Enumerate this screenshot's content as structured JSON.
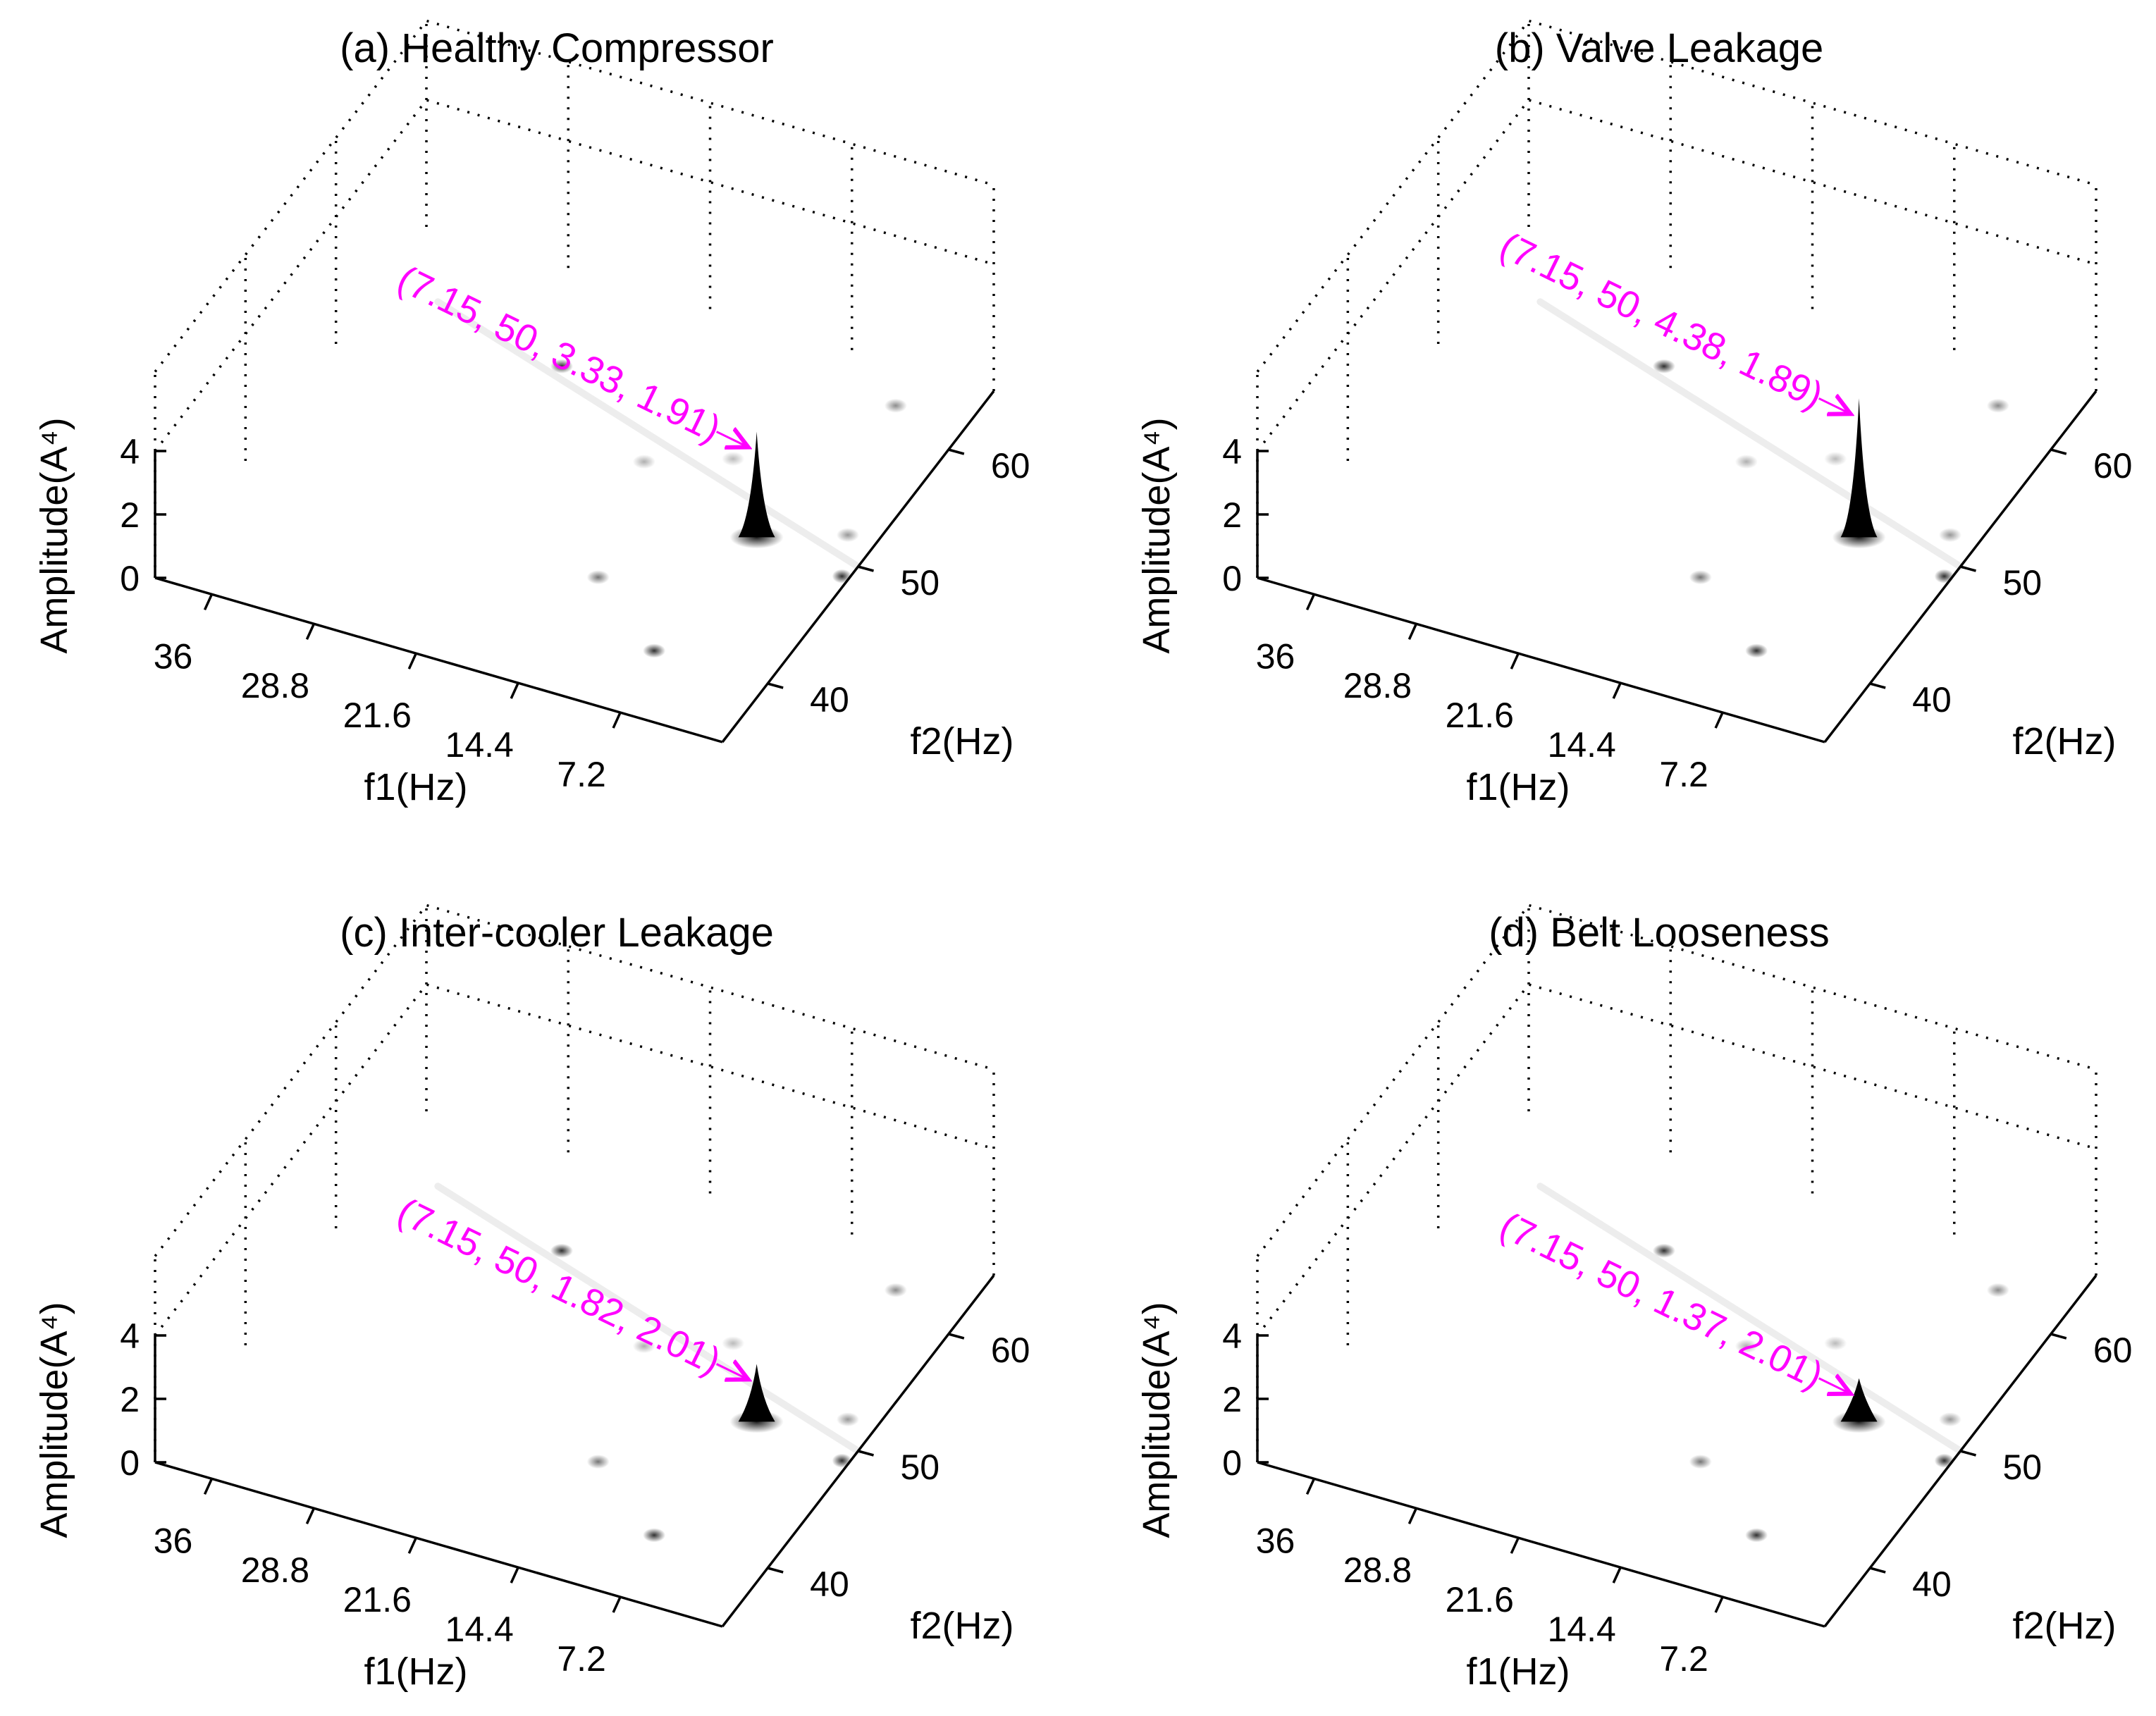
{
  "figure": {
    "annotation_color": "#ff00ff",
    "peak_color": "#000000"
  },
  "chart_data": [
    {
      "type": "surface3d",
      "title": "(a) Healthy Compressor",
      "xlabel": "f1(Hz)",
      "ylabel": "f2(Hz)",
      "zlabel": "Amplitude(A⁴)",
      "x_ticks": [
        "36",
        "28.8",
        "21.6",
        "14.4",
        "7.2"
      ],
      "y_ticks": [
        "40",
        "50",
        "60"
      ],
      "z_ticks": [
        "0",
        "2",
        "4"
      ],
      "zlim": [
        0,
        4
      ],
      "peak": {
        "f1": 7.15,
        "f2": 50,
        "amplitude": 3.33,
        "ratio": 1.91
      },
      "annotation": "(7.15, 50, 3.33, 1.91)"
    },
    {
      "type": "surface3d",
      "title": "(b) Valve Leakage",
      "xlabel": "f1(Hz)",
      "ylabel": "f2(Hz)",
      "zlabel": "Amplitude(A⁴)",
      "x_ticks": [
        "36",
        "28.8",
        "21.6",
        "14.4",
        "7.2"
      ],
      "y_ticks": [
        "40",
        "50",
        "60"
      ],
      "z_ticks": [
        "0",
        "2",
        "4"
      ],
      "zlim": [
        0,
        4
      ],
      "peak": {
        "f1": 7.15,
        "f2": 50,
        "amplitude": 4.38,
        "ratio": 1.89
      },
      "annotation": "(7.15, 50, 4.38, 1.89)"
    },
    {
      "type": "surface3d",
      "title": "(c) Inter-cooler Leakage",
      "xlabel": "f1(Hz)",
      "ylabel": "f2(Hz)",
      "zlabel": "Amplitude(A⁴)",
      "x_ticks": [
        "36",
        "28.8",
        "21.6",
        "14.4",
        "7.2"
      ],
      "y_ticks": [
        "40",
        "50",
        "60"
      ],
      "z_ticks": [
        "0",
        "2",
        "4"
      ],
      "zlim": [
        0,
        4
      ],
      "peak": {
        "f1": 7.15,
        "f2": 50,
        "amplitude": 1.82,
        "ratio": 2.01
      },
      "annotation": "(7.15, 50, 1.82, 2.01)"
    },
    {
      "type": "surface3d",
      "title": "(d) Belt Looseness",
      "xlabel": "f1(Hz)",
      "ylabel": "f2(Hz)",
      "zlabel": "Amplitude(A⁴)",
      "x_ticks": [
        "36",
        "28.8",
        "21.6",
        "14.4",
        "7.2"
      ],
      "y_ticks": [
        "40",
        "50",
        "60"
      ],
      "z_ticks": [
        "0",
        "2",
        "4"
      ],
      "zlim": [
        0,
        4
      ],
      "peak": {
        "f1": 7.15,
        "f2": 50,
        "amplitude": 1.37,
        "ratio": 2.01
      },
      "annotation": "(7.15, 50, 1.37, 2.01)"
    }
  ]
}
